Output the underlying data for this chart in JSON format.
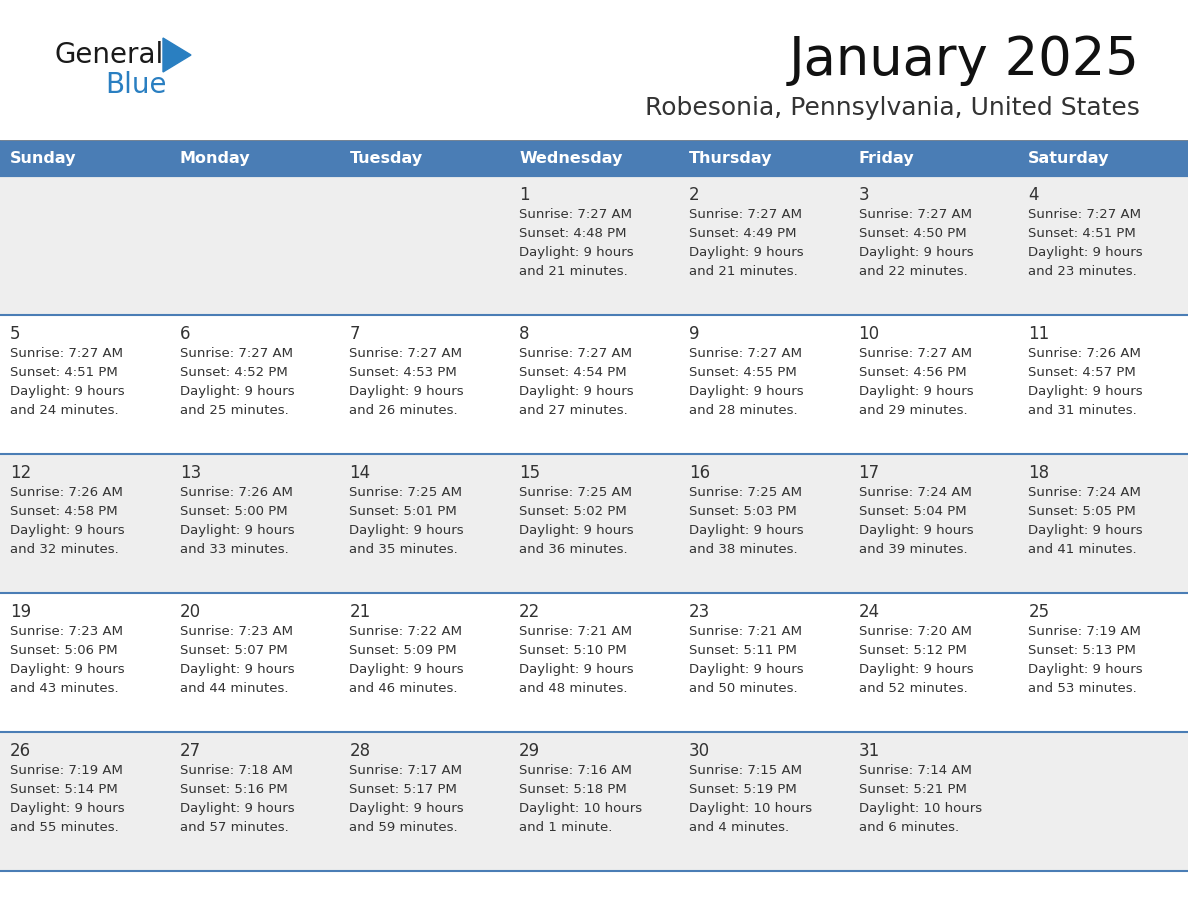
{
  "title": "January 2025",
  "subtitle": "Robesonia, Pennsylvania, United States",
  "header_color": "#4a7db5",
  "header_text_color": "#ffffff",
  "cell_bg_row0": "#eeeeee",
  "cell_bg_row1": "#ffffff",
  "cell_bg_row2": "#eeeeee",
  "cell_bg_row3": "#ffffff",
  "cell_bg_row4": "#eeeeee",
  "border_color": "#4a7db5",
  "text_color": "#333333",
  "days_of_week": [
    "Sunday",
    "Monday",
    "Tuesday",
    "Wednesday",
    "Thursday",
    "Friday",
    "Saturday"
  ],
  "logo_general_color": "#1a1a1a",
  "logo_blue_color": "#2a7fc1",
  "calendar_data": [
    [
      {
        "day": null,
        "sunrise": null,
        "sunset": null,
        "daylight_line1": null,
        "daylight_line2": null
      },
      {
        "day": null,
        "sunrise": null,
        "sunset": null,
        "daylight_line1": null,
        "daylight_line2": null
      },
      {
        "day": null,
        "sunrise": null,
        "sunset": null,
        "daylight_line1": null,
        "daylight_line2": null
      },
      {
        "day": "1",
        "sunrise": "Sunrise: 7:27 AM",
        "sunset": "Sunset: 4:48 PM",
        "daylight_line1": "Daylight: 9 hours",
        "daylight_line2": "and 21 minutes."
      },
      {
        "day": "2",
        "sunrise": "Sunrise: 7:27 AM",
        "sunset": "Sunset: 4:49 PM",
        "daylight_line1": "Daylight: 9 hours",
        "daylight_line2": "and 21 minutes."
      },
      {
        "day": "3",
        "sunrise": "Sunrise: 7:27 AM",
        "sunset": "Sunset: 4:50 PM",
        "daylight_line1": "Daylight: 9 hours",
        "daylight_line2": "and 22 minutes."
      },
      {
        "day": "4",
        "sunrise": "Sunrise: 7:27 AM",
        "sunset": "Sunset: 4:51 PM",
        "daylight_line1": "Daylight: 9 hours",
        "daylight_line2": "and 23 minutes."
      }
    ],
    [
      {
        "day": "5",
        "sunrise": "Sunrise: 7:27 AM",
        "sunset": "Sunset: 4:51 PM",
        "daylight_line1": "Daylight: 9 hours",
        "daylight_line2": "and 24 minutes."
      },
      {
        "day": "6",
        "sunrise": "Sunrise: 7:27 AM",
        "sunset": "Sunset: 4:52 PM",
        "daylight_line1": "Daylight: 9 hours",
        "daylight_line2": "and 25 minutes."
      },
      {
        "day": "7",
        "sunrise": "Sunrise: 7:27 AM",
        "sunset": "Sunset: 4:53 PM",
        "daylight_line1": "Daylight: 9 hours",
        "daylight_line2": "and 26 minutes."
      },
      {
        "day": "8",
        "sunrise": "Sunrise: 7:27 AM",
        "sunset": "Sunset: 4:54 PM",
        "daylight_line1": "Daylight: 9 hours",
        "daylight_line2": "and 27 minutes."
      },
      {
        "day": "9",
        "sunrise": "Sunrise: 7:27 AM",
        "sunset": "Sunset: 4:55 PM",
        "daylight_line1": "Daylight: 9 hours",
        "daylight_line2": "and 28 minutes."
      },
      {
        "day": "10",
        "sunrise": "Sunrise: 7:27 AM",
        "sunset": "Sunset: 4:56 PM",
        "daylight_line1": "Daylight: 9 hours",
        "daylight_line2": "and 29 minutes."
      },
      {
        "day": "11",
        "sunrise": "Sunrise: 7:26 AM",
        "sunset": "Sunset: 4:57 PM",
        "daylight_line1": "Daylight: 9 hours",
        "daylight_line2": "and 31 minutes."
      }
    ],
    [
      {
        "day": "12",
        "sunrise": "Sunrise: 7:26 AM",
        "sunset": "Sunset: 4:58 PM",
        "daylight_line1": "Daylight: 9 hours",
        "daylight_line2": "and 32 minutes."
      },
      {
        "day": "13",
        "sunrise": "Sunrise: 7:26 AM",
        "sunset": "Sunset: 5:00 PM",
        "daylight_line1": "Daylight: 9 hours",
        "daylight_line2": "and 33 minutes."
      },
      {
        "day": "14",
        "sunrise": "Sunrise: 7:25 AM",
        "sunset": "Sunset: 5:01 PM",
        "daylight_line1": "Daylight: 9 hours",
        "daylight_line2": "and 35 minutes."
      },
      {
        "day": "15",
        "sunrise": "Sunrise: 7:25 AM",
        "sunset": "Sunset: 5:02 PM",
        "daylight_line1": "Daylight: 9 hours",
        "daylight_line2": "and 36 minutes."
      },
      {
        "day": "16",
        "sunrise": "Sunrise: 7:25 AM",
        "sunset": "Sunset: 5:03 PM",
        "daylight_line1": "Daylight: 9 hours",
        "daylight_line2": "and 38 minutes."
      },
      {
        "day": "17",
        "sunrise": "Sunrise: 7:24 AM",
        "sunset": "Sunset: 5:04 PM",
        "daylight_line1": "Daylight: 9 hours",
        "daylight_line2": "and 39 minutes."
      },
      {
        "day": "18",
        "sunrise": "Sunrise: 7:24 AM",
        "sunset": "Sunset: 5:05 PM",
        "daylight_line1": "Daylight: 9 hours",
        "daylight_line2": "and 41 minutes."
      }
    ],
    [
      {
        "day": "19",
        "sunrise": "Sunrise: 7:23 AM",
        "sunset": "Sunset: 5:06 PM",
        "daylight_line1": "Daylight: 9 hours",
        "daylight_line2": "and 43 minutes."
      },
      {
        "day": "20",
        "sunrise": "Sunrise: 7:23 AM",
        "sunset": "Sunset: 5:07 PM",
        "daylight_line1": "Daylight: 9 hours",
        "daylight_line2": "and 44 minutes."
      },
      {
        "day": "21",
        "sunrise": "Sunrise: 7:22 AM",
        "sunset": "Sunset: 5:09 PM",
        "daylight_line1": "Daylight: 9 hours",
        "daylight_line2": "and 46 minutes."
      },
      {
        "day": "22",
        "sunrise": "Sunrise: 7:21 AM",
        "sunset": "Sunset: 5:10 PM",
        "daylight_line1": "Daylight: 9 hours",
        "daylight_line2": "and 48 minutes."
      },
      {
        "day": "23",
        "sunrise": "Sunrise: 7:21 AM",
        "sunset": "Sunset: 5:11 PM",
        "daylight_line1": "Daylight: 9 hours",
        "daylight_line2": "and 50 minutes."
      },
      {
        "day": "24",
        "sunrise": "Sunrise: 7:20 AM",
        "sunset": "Sunset: 5:12 PM",
        "daylight_line1": "Daylight: 9 hours",
        "daylight_line2": "and 52 minutes."
      },
      {
        "day": "25",
        "sunrise": "Sunrise: 7:19 AM",
        "sunset": "Sunset: 5:13 PM",
        "daylight_line1": "Daylight: 9 hours",
        "daylight_line2": "and 53 minutes."
      }
    ],
    [
      {
        "day": "26",
        "sunrise": "Sunrise: 7:19 AM",
        "sunset": "Sunset: 5:14 PM",
        "daylight_line1": "Daylight: 9 hours",
        "daylight_line2": "and 55 minutes."
      },
      {
        "day": "27",
        "sunrise": "Sunrise: 7:18 AM",
        "sunset": "Sunset: 5:16 PM",
        "daylight_line1": "Daylight: 9 hours",
        "daylight_line2": "and 57 minutes."
      },
      {
        "day": "28",
        "sunrise": "Sunrise: 7:17 AM",
        "sunset": "Sunset: 5:17 PM",
        "daylight_line1": "Daylight: 9 hours",
        "daylight_line2": "and 59 minutes."
      },
      {
        "day": "29",
        "sunrise": "Sunrise: 7:16 AM",
        "sunset": "Sunset: 5:18 PM",
        "daylight_line1": "Daylight: 10 hours",
        "daylight_line2": "and 1 minute."
      },
      {
        "day": "30",
        "sunrise": "Sunrise: 7:15 AM",
        "sunset": "Sunset: 5:19 PM",
        "daylight_line1": "Daylight: 10 hours",
        "daylight_line2": "and 4 minutes."
      },
      {
        "day": "31",
        "sunrise": "Sunrise: 7:14 AM",
        "sunset": "Sunset: 5:21 PM",
        "daylight_line1": "Daylight: 10 hours",
        "daylight_line2": "and 6 minutes."
      },
      {
        "day": null,
        "sunrise": null,
        "sunset": null,
        "daylight_line1": null,
        "daylight_line2": null
      }
    ]
  ],
  "row_bg_colors": [
    "#eeeeee",
    "#ffffff",
    "#eeeeee",
    "#ffffff",
    "#eeeeee"
  ]
}
